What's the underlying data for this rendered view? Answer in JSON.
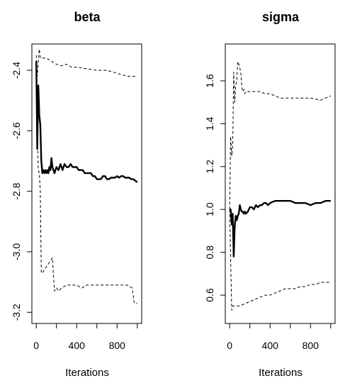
{
  "chart_data": [
    {
      "type": "line",
      "title": "beta",
      "xlabel": "Iterations",
      "ylabel": "",
      "xlim": [
        0,
        1000
      ],
      "ylim": [
        -3.2,
        -2.35
      ],
      "xticks": [
        0,
        400,
        800
      ],
      "xtick_labels": [
        "0",
        "400",
        "800"
      ],
      "yticks": [
        -2.4,
        -2.6,
        -2.8,
        -3.0,
        -3.2
      ],
      "ytick_labels": [
        "-2.4",
        "-2.6",
        "-2.8",
        "-3.0",
        "-3.2"
      ],
      "grid": false,
      "series": [
        {
          "style": "solid-thick",
          "x": [
            0,
            10,
            20,
            30,
            40,
            50,
            60,
            70,
            80,
            90,
            100,
            110,
            120,
            130,
            140,
            150,
            160,
            170,
            180,
            200,
            220,
            240,
            260,
            280,
            300,
            320,
            340,
            360,
            380,
            400,
            420,
            440,
            460,
            480,
            500,
            520,
            540,
            560,
            580,
            600,
            620,
            640,
            660,
            680,
            700,
            720,
            740,
            760,
            780,
            800,
            820,
            840,
            860,
            880,
            900,
            920,
            940,
            960,
            980,
            1000
          ],
          "y": [
            -2.37,
            -2.66,
            -2.45,
            -2.55,
            -2.58,
            -2.7,
            -2.74,
            -2.73,
            -2.74,
            -2.73,
            -2.74,
            -2.73,
            -2.74,
            -2.72,
            -2.73,
            -2.69,
            -2.72,
            -2.73,
            -2.74,
            -2.72,
            -2.73,
            -2.71,
            -2.73,
            -2.71,
            -2.72,
            -2.72,
            -2.71,
            -2.72,
            -2.72,
            -2.72,
            -2.73,
            -2.73,
            -2.73,
            -2.74,
            -2.74,
            -2.74,
            -2.74,
            -2.75,
            -2.75,
            -2.76,
            -2.76,
            -2.76,
            -2.75,
            -2.75,
            -2.76,
            -2.76,
            -2.755,
            -2.755,
            -2.755,
            -2.75,
            -2.755,
            -2.75,
            -2.75,
            -2.755,
            -2.755,
            -2.755,
            -2.76,
            -2.76,
            -2.765,
            -2.77
          ]
        },
        {
          "style": "dashed",
          "x": [
            0,
            10,
            20,
            30,
            40,
            60,
            80,
            100,
            150,
            200,
            250,
            300,
            350,
            400,
            500,
            600,
            700,
            800,
            900,
            950,
            1000
          ],
          "y": [
            -2.35,
            -2.42,
            -2.37,
            -2.33,
            -2.36,
            -2.36,
            -2.36,
            -2.36,
            -2.37,
            -2.38,
            -2.385,
            -2.38,
            -2.39,
            -2.39,
            -2.395,
            -2.4,
            -2.4,
            -2.41,
            -2.42,
            -2.42,
            -2.42
          ]
        },
        {
          "style": "dashed",
          "x": [
            0,
            10,
            20,
            30,
            40,
            50,
            60,
            80,
            100,
            120,
            140,
            160,
            180,
            200,
            220,
            250,
            300,
            350,
            400,
            450,
            500,
            550,
            600,
            700,
            800,
            900,
            950,
            970,
            1000
          ],
          "y": [
            -2.37,
            -2.62,
            -2.73,
            -2.74,
            -2.8,
            -3.07,
            -3.07,
            -3.06,
            -3.05,
            -3.04,
            -3.03,
            -3.02,
            -3.13,
            -3.12,
            -3.13,
            -3.12,
            -3.11,
            -3.11,
            -3.11,
            -3.12,
            -3.11,
            -3.11,
            -3.11,
            -3.11,
            -3.11,
            -3.11,
            -3.12,
            -3.17,
            -3.17
          ]
        }
      ]
    },
    {
      "type": "line",
      "title": "sigma",
      "xlabel": "Iterations",
      "ylabel": "",
      "xlim": [
        0,
        1000
      ],
      "ylim": [
        0.52,
        1.72
      ],
      "xticks": [
        0,
        400,
        800
      ],
      "xtick_labels": [
        "0",
        "400",
        "800"
      ],
      "yticks": [
        0.6,
        0.8,
        1.0,
        1.2,
        1.4,
        1.6
      ],
      "ytick_labels": [
        "0.6",
        "0.8",
        "1.0",
        "1.2",
        "1.4",
        "1.6"
      ],
      "grid": false,
      "series": [
        {
          "style": "solid-thick",
          "x": [
            0,
            10,
            20,
            30,
            40,
            50,
            60,
            70,
            80,
            90,
            100,
            110,
            120,
            130,
            140,
            150,
            160,
            180,
            200,
            220,
            240,
            260,
            280,
            300,
            320,
            340,
            360,
            380,
            400,
            450,
            500,
            550,
            600,
            650,
            700,
            750,
            800,
            850,
            900,
            950,
            1000
          ],
          "y": [
            1.0,
            1.0,
            0.93,
            0.98,
            0.78,
            0.92,
            0.97,
            0.95,
            0.97,
            0.98,
            1.02,
            1.0,
            0.99,
            0.99,
            0.98,
            0.99,
            0.98,
            0.99,
            1.01,
            1.01,
            1.0,
            1.02,
            1.01,
            1.02,
            1.02,
            1.03,
            1.03,
            1.02,
            1.03,
            1.04,
            1.04,
            1.04,
            1.04,
            1.03,
            1.03,
            1.03,
            1.02,
            1.03,
            1.03,
            1.04,
            1.04
          ]
        },
        {
          "style": "dashed",
          "x": [
            0,
            10,
            20,
            30,
            40,
            50,
            60,
            70,
            80,
            90,
            100,
            110,
            120,
            130,
            140,
            150,
            160,
            180,
            200,
            250,
            300,
            350,
            400,
            450,
            500,
            550,
            600,
            700,
            800,
            900,
            950,
            1000
          ],
          "y": [
            1.0,
            1.34,
            1.25,
            1.3,
            1.64,
            1.5,
            1.58,
            1.6,
            1.69,
            1.68,
            1.66,
            1.64,
            1.57,
            1.55,
            1.56,
            1.54,
            1.55,
            1.55,
            1.55,
            1.55,
            1.55,
            1.54,
            1.54,
            1.53,
            1.52,
            1.52,
            1.52,
            1.52,
            1.52,
            1.51,
            1.52,
            1.53
          ]
        },
        {
          "style": "dashed",
          "x": [
            0,
            10,
            20,
            30,
            40,
            50,
            100,
            150,
            200,
            250,
            300,
            350,
            400,
            450,
            500,
            550,
            600,
            650,
            700,
            750,
            800,
            850,
            900,
            950,
            1000
          ],
          "y": [
            1.0,
            0.76,
            0.53,
            0.55,
            0.55,
            0.55,
            0.55,
            0.56,
            0.57,
            0.58,
            0.59,
            0.6,
            0.6,
            0.61,
            0.62,
            0.63,
            0.63,
            0.63,
            0.64,
            0.64,
            0.65,
            0.65,
            0.66,
            0.66,
            0.66
          ]
        }
      ]
    }
  ]
}
